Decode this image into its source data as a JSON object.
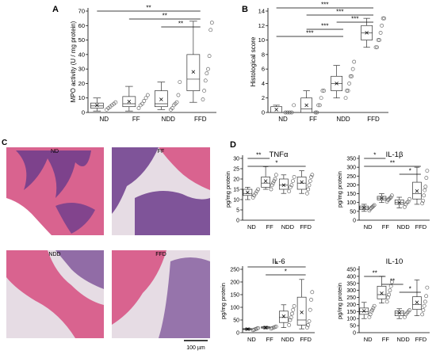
{
  "panel_letters": {
    "a": "A",
    "b": "B",
    "c": "C",
    "d": "D"
  },
  "groups": [
    "ND",
    "FF",
    "NDD",
    "FFD"
  ],
  "histology": {
    "labels": [
      "ND",
      "FF",
      "NDD",
      "FFD"
    ],
    "scale_bar": "100 µm",
    "colors": {
      "tissue": "#d9638f",
      "crypt": "#6c3c8c",
      "background": "#e6dce4",
      "blank": "#ffffff"
    }
  },
  "colors": {
    "box_edge": "#333333",
    "point": "#555555",
    "sig": "#000000",
    "mean_marker": "#000000"
  },
  "chart_data": [
    {
      "id": "mpo",
      "type": "box",
      "panel": "A",
      "ylabel": "MPO activity (U / mg protein)",
      "ylim": [
        0,
        70
      ],
      "yticks": [
        0,
        10,
        20,
        30,
        40,
        50,
        60,
        70
      ],
      "categories": [
        "ND",
        "FF",
        "NDD",
        "FFD"
      ],
      "boxes": [
        {
          "whisker_low": 1,
          "q1": 3,
          "median": 4.5,
          "q3": 6.5,
          "whisker_high": 10,
          "mean": 5
        },
        {
          "whisker_low": 1,
          "q1": 4,
          "median": 6,
          "q3": 11,
          "whisker_high": 18,
          "mean": 7.5
        },
        {
          "whisker_low": 2,
          "q1": 4,
          "median": 6,
          "q3": 15,
          "whisker_high": 21,
          "mean": 9
        },
        {
          "whisker_low": 7,
          "q1": 15,
          "median": 23,
          "q3": 40,
          "whisker_high": 63,
          "mean": 28
        }
      ],
      "points": [
        [
          2,
          3,
          4,
          5,
          6,
          7
        ],
        [
          3,
          5,
          6,
          8,
          10,
          12
        ],
        [
          2,
          3,
          5,
          6,
          7,
          12,
          21
        ],
        [
          9,
          15,
          22,
          27,
          30,
          39,
          57,
          62
        ]
      ],
      "significance": [
        {
          "pair": [
            0,
            3
          ],
          "label": "**"
        },
        {
          "pair": [
            1,
            3
          ],
          "label": "**"
        },
        {
          "pair": [
            2,
            3
          ],
          "label": "**"
        }
      ]
    },
    {
      "id": "histo",
      "type": "box",
      "panel": "B",
      "ylabel": "Histological score",
      "ylim": [
        0,
        14
      ],
      "yticks": [
        0,
        2,
        4,
        6,
        8,
        10,
        12,
        14
      ],
      "categories": [
        "ND",
        "FF",
        "NDD",
        "FFD"
      ],
      "boxes": [
        {
          "whisker_low": 0,
          "q1": 0,
          "median": 0,
          "q3": 0.8,
          "whisker_high": 1,
          "mean": 0.4
        },
        {
          "whisker_low": 0,
          "q1": 0,
          "median": 0.5,
          "q3": 2,
          "whisker_high": 3,
          "mean": 1
        },
        {
          "whisker_low": 2,
          "q1": 3,
          "median": 4,
          "q3": 5,
          "whisker_high": 6.5,
          "mean": 4
        },
        {
          "whisker_low": 9,
          "q1": 10,
          "median": 11,
          "q3": 12,
          "whisker_high": 13,
          "mean": 11
        }
      ],
      "points": [
        [
          0,
          0,
          0,
          0,
          1
        ],
        [
          0,
          0,
          1,
          1,
          2,
          3,
          3
        ],
        [
          2,
          3,
          3,
          4,
          5,
          5,
          6,
          7
        ],
        [
          9,
          9,
          10,
          10,
          11,
          12,
          13,
          13
        ]
      ],
      "significance": [
        {
          "pair": [
            0,
            3
          ],
          "label": "***"
        },
        {
          "pair": [
            1,
            3
          ],
          "label": "***"
        },
        {
          "pair": [
            2,
            3
          ],
          "label": "***"
        },
        {
          "pair": [
            1,
            2
          ],
          "label": "***"
        },
        {
          "pair": [
            0,
            2
          ],
          "label": "***"
        }
      ]
    },
    {
      "id": "tnf",
      "type": "box",
      "panel": "D",
      "title": "TNFα",
      "ylabel": "pg/mg protein",
      "ylim": [
        0,
        30
      ],
      "yticks": [
        0,
        5,
        10,
        15,
        20,
        25,
        30
      ],
      "categories": [
        "ND",
        "FF",
        "NDD",
        "FFD"
      ],
      "boxes": [
        {
          "whisker_low": 10,
          "q1": 12,
          "median": 13,
          "q3": 15,
          "whisker_high": 16,
          "mean": 13.5
        },
        {
          "whisker_low": 15,
          "q1": 16,
          "median": 18,
          "q3": 21,
          "whisker_high": 26,
          "mean": 19
        },
        {
          "whisker_low": 13,
          "q1": 15,
          "median": 17,
          "q3": 20,
          "whisker_high": 22,
          "mean": 17
        },
        {
          "whisker_low": 13,
          "q1": 15,
          "median": 18,
          "q3": 21,
          "whisker_high": 24,
          "mean": 18.5
        }
      ],
      "points": [
        [
          11,
          12,
          13,
          14,
          15
        ],
        [
          15,
          17,
          18,
          19,
          20,
          22
        ],
        [
          14,
          16,
          17,
          19,
          21
        ],
        [
          13,
          15,
          17,
          19,
          21,
          22
        ]
      ],
      "significance": [
        {
          "pair": [
            0,
            1
          ],
          "label": "**"
        },
        {
          "pair": [
            0,
            3
          ],
          "label": "*"
        }
      ]
    },
    {
      "id": "il1b",
      "type": "box",
      "panel": "D",
      "title": "IL-1β",
      "ylabel": "pg/mg protein",
      "ylim": [
        0,
        350
      ],
      "yticks": [
        0,
        50,
        100,
        150,
        200,
        250,
        300,
        350
      ],
      "categories": [
        "ND",
        "FF",
        "NDD",
        "FFD"
      ],
      "boxes": [
        {
          "whisker_low": 50,
          "q1": 60,
          "median": 70,
          "q3": 80,
          "whisker_high": 90,
          "mean": 70
        },
        {
          "whisker_low": 100,
          "q1": 115,
          "median": 125,
          "q3": 135,
          "whisker_high": 150,
          "mean": 125
        },
        {
          "whisker_low": 70,
          "q1": 90,
          "median": 100,
          "q3": 115,
          "whisker_high": 130,
          "mean": 100
        },
        {
          "whisker_low": 90,
          "q1": 120,
          "median": 150,
          "q3": 215,
          "whisker_high": 300,
          "mean": 165
        }
      ],
      "points": [
        [
          55,
          65,
          70,
          75,
          80,
          85
        ],
        [
          105,
          115,
          120,
          125,
          130,
          140
        ],
        [
          75,
          90,
          100,
          105,
          120
        ],
        [
          95,
          110,
          140,
          170,
          190,
          240,
          280
        ]
      ],
      "significance": [
        {
          "pair": [
            0,
            1
          ],
          "label": "*"
        },
        {
          "pair": [
            0,
            3
          ],
          "label": "**"
        },
        {
          "pair": [
            2,
            3
          ],
          "label": "*"
        }
      ]
    },
    {
      "id": "il6",
      "type": "box",
      "panel": "D",
      "title": "IL-6",
      "ylabel": "pg/mg protein",
      "ylim": [
        0,
        250
      ],
      "yticks": [
        0,
        50,
        100,
        150,
        200,
        250
      ],
      "categories": [
        "ND",
        "FF",
        "NDD",
        "FFD"
      ],
      "boxes": [
        {
          "whisker_low": 10,
          "q1": 12,
          "median": 14,
          "q3": 16,
          "whisker_high": 18,
          "mean": 14
        },
        {
          "whisker_low": 15,
          "q1": 18,
          "median": 20,
          "q3": 23,
          "whisker_high": 25,
          "mean": 20
        },
        {
          "whisker_low": 20,
          "q1": 40,
          "median": 60,
          "q3": 85,
          "whisker_high": 110,
          "mean": 65
        },
        {
          "whisker_low": 15,
          "q1": 30,
          "median": 50,
          "q3": 140,
          "whisker_high": 210,
          "mean": 80
        }
      ],
      "points": [
        [
          10,
          12,
          14,
          16,
          18
        ],
        [
          16,
          18,
          20,
          22,
          24
        ],
        [
          30,
          50,
          60,
          75,
          90,
          105
        ],
        [
          20,
          30,
          45,
          90,
          130,
          160
        ]
      ],
      "significance": [
        {
          "pair": [
            0,
            3
          ],
          "label": "*"
        },
        {
          "pair": [
            1,
            3
          ],
          "label": "*"
        }
      ]
    },
    {
      "id": "il10",
      "type": "box",
      "panel": "D",
      "title": "IL-10",
      "ylabel": "pg/mg protein",
      "ylim": [
        0,
        450
      ],
      "yticks": [
        0,
        50,
        100,
        150,
        200,
        250,
        300,
        350,
        400,
        450
      ],
      "categories": [
        "ND",
        "FF",
        "NDD",
        "FFD"
      ],
      "boxes": [
        {
          "whisker_low": 100,
          "q1": 130,
          "median": 150,
          "q3": 175,
          "whisker_high": 215,
          "mean": 155
        },
        {
          "whisker_low": 210,
          "q1": 240,
          "median": 270,
          "q3": 330,
          "whisker_high": 400,
          "mean": 280
        },
        {
          "whisker_low": 100,
          "q1": 120,
          "median": 140,
          "q3": 155,
          "whisker_high": 170,
          "mean": 140
        },
        {
          "whisker_low": 120,
          "q1": 165,
          "median": 200,
          "q3": 255,
          "whisker_high": 375,
          "mean": 215
        }
      ],
      "points": [
        [
          110,
          130,
          150,
          160,
          175,
          190
        ],
        [
          220,
          250,
          270,
          300,
          330,
          360
        ],
        [
          110,
          130,
          140,
          150,
          160
        ],
        [
          130,
          160,
          190,
          220,
          260,
          320
        ]
      ],
      "significance": [
        {
          "pair": [
            0,
            1
          ],
          "label": "**"
        },
        {
          "pair": [
            1,
            2
          ],
          "label": "**"
        },
        {
          "pair": [
            2,
            3
          ],
          "label": "*"
        }
      ]
    }
  ]
}
